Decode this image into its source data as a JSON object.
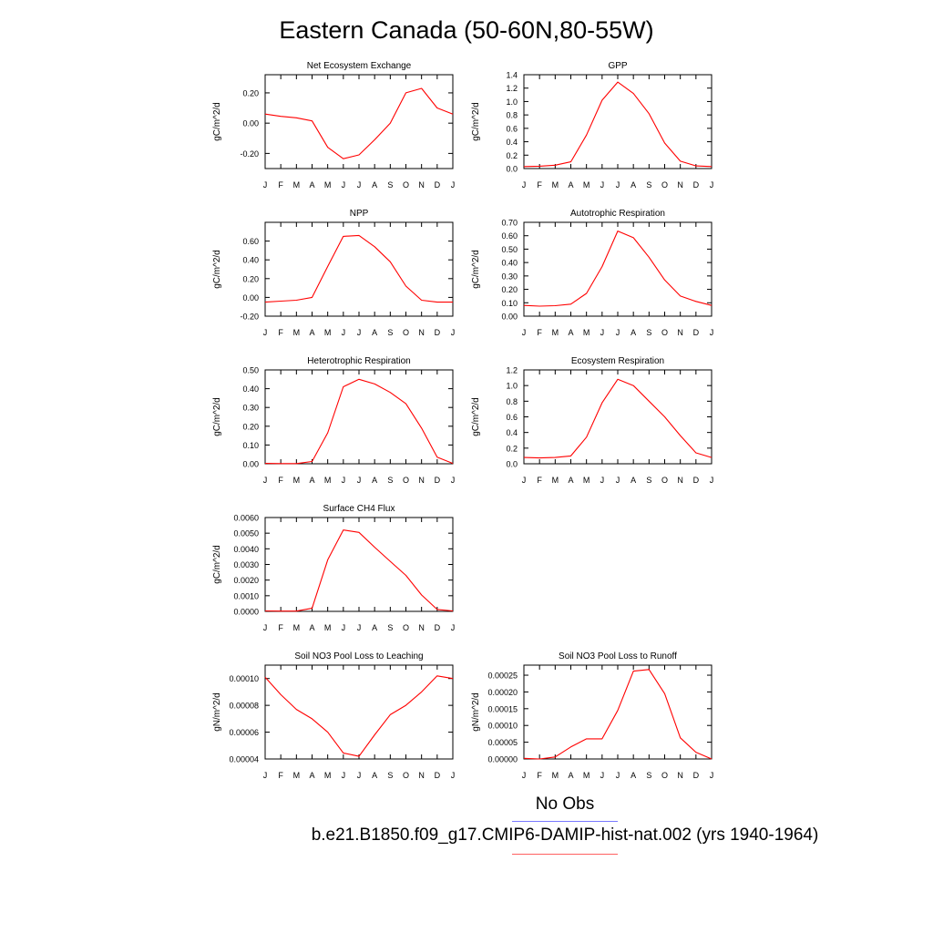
{
  "page": {
    "title": "Eastern Canada (50-60N,80-55W)",
    "legend": {
      "obs_label": "No Obs",
      "run_label": "b.e21.B1850.f09_g17.CMIP6-DAMIP-hist-nat.002 (yrs 1940-1964)",
      "obs_color": "#7a7aff",
      "run_color": "#ff0000"
    }
  },
  "chart_data": [
    {
      "type": "line",
      "title": "Net Ecosystem Exchange",
      "ylabel": "gC/m^2/d",
      "categories": [
        "J",
        "F",
        "M",
        "A",
        "M",
        "J",
        "J",
        "A",
        "S",
        "O",
        "N",
        "D",
        "J"
      ],
      "series": [
        {
          "values": [
            0.06,
            0.045,
            0.035,
            0.015,
            -0.16,
            -0.235,
            -0.21,
            -0.11,
            0.0,
            0.2,
            0.23,
            0.1,
            0.06
          ]
        }
      ],
      "ylim": [
        -0.3,
        0.32
      ],
      "yticks": [
        -0.2,
        0.0,
        0.2
      ],
      "ytick_labels": [
        "-0.20",
        "0.00",
        "0.20"
      ]
    },
    {
      "type": "line",
      "title": "GPP",
      "ylabel": "gC/m^2/d",
      "categories": [
        "J",
        "F",
        "M",
        "A",
        "M",
        "J",
        "J",
        "A",
        "S",
        "O",
        "N",
        "D",
        "J"
      ],
      "series": [
        {
          "values": [
            0.03,
            0.035,
            0.05,
            0.1,
            0.5,
            1.02,
            1.29,
            1.12,
            0.82,
            0.38,
            0.11,
            0.04,
            0.03
          ]
        }
      ],
      "ylim": [
        0,
        1.4
      ],
      "yticks": [
        0,
        0.2,
        0.4,
        0.6,
        0.8,
        1.0,
        1.2,
        1.4
      ],
      "ytick_labels": [
        "0.0",
        "0.2",
        "0.4",
        "0.6",
        "0.8",
        "1.0",
        "1.2",
        "1.4"
      ]
    },
    {
      "type": "line",
      "title": "NPP",
      "ylabel": "gC/m^2/d",
      "categories": [
        "J",
        "F",
        "M",
        "A",
        "M",
        "J",
        "J",
        "A",
        "S",
        "O",
        "N",
        "D",
        "J"
      ],
      "series": [
        {
          "values": [
            -0.05,
            -0.04,
            -0.03,
            0.0,
            0.33,
            0.65,
            0.66,
            0.54,
            0.38,
            0.12,
            -0.03,
            -0.05,
            -0.05
          ]
        }
      ],
      "ylim": [
        -0.2,
        0.8
      ],
      "yticks": [
        -0.2,
        0.0,
        0.2,
        0.4,
        0.6
      ],
      "ytick_labels": [
        "-0.20",
        "0.00",
        "0.20",
        "0.40",
        "0.60"
      ]
    },
    {
      "type": "line",
      "title": "Autotrophic Respiration",
      "ylabel": "gC/m^2/d",
      "categories": [
        "J",
        "F",
        "M",
        "A",
        "M",
        "J",
        "J",
        "A",
        "S",
        "O",
        "N",
        "D",
        "J"
      ],
      "series": [
        {
          "values": [
            0.08,
            0.075,
            0.078,
            0.09,
            0.17,
            0.37,
            0.635,
            0.585,
            0.44,
            0.27,
            0.15,
            0.11,
            0.08
          ]
        }
      ],
      "ylim": [
        0,
        0.7
      ],
      "yticks": [
        0,
        0.1,
        0.2,
        0.3,
        0.4,
        0.5,
        0.6,
        0.7
      ],
      "ytick_labels": [
        "0.00",
        "0.10",
        "0.20",
        "0.30",
        "0.40",
        "0.50",
        "0.60",
        "0.70"
      ]
    },
    {
      "type": "line",
      "title": "Heterotrophic Respiration",
      "ylabel": "gC/m^2/d",
      "categories": [
        "J",
        "F",
        "M",
        "A",
        "M",
        "J",
        "J",
        "A",
        "S",
        "O",
        "N",
        "D",
        "J"
      ],
      "series": [
        {
          "values": [
            0.002,
            0.001,
            0.001,
            0.012,
            0.165,
            0.41,
            0.45,
            0.425,
            0.38,
            0.32,
            0.19,
            0.035,
            0.002
          ]
        }
      ],
      "ylim": [
        0,
        0.5
      ],
      "yticks": [
        0,
        0.1,
        0.2,
        0.3,
        0.4,
        0.5
      ],
      "ytick_labels": [
        "0.00",
        "0.10",
        "0.20",
        "0.30",
        "0.40",
        "0.50"
      ]
    },
    {
      "type": "line",
      "title": "Ecosystem Respiration",
      "ylabel": "gC/m^2/d",
      "categories": [
        "J",
        "F",
        "M",
        "A",
        "M",
        "J",
        "J",
        "A",
        "S",
        "O",
        "N",
        "D",
        "J"
      ],
      "series": [
        {
          "values": [
            0.08,
            0.075,
            0.08,
            0.1,
            0.34,
            0.78,
            1.08,
            1.0,
            0.8,
            0.6,
            0.36,
            0.14,
            0.08
          ]
        }
      ],
      "ylim": [
        0,
        1.2
      ],
      "yticks": [
        0,
        0.2,
        0.4,
        0.6,
        0.8,
        1.0,
        1.2
      ],
      "ytick_labels": [
        "0.0",
        "0.2",
        "0.4",
        "0.6",
        "0.8",
        "1.0",
        "1.2"
      ]
    },
    {
      "type": "line",
      "title": "Surface CH4 Flux",
      "ylabel": "gC/m^2/d",
      "categories": [
        "J",
        "F",
        "M",
        "A",
        "M",
        "J",
        "J",
        "A",
        "S",
        "O",
        "N",
        "D",
        "J"
      ],
      "series": [
        {
          "values": [
            3e-05,
            2e-05,
            2e-05,
            0.0002,
            0.0033,
            0.0052,
            0.00505,
            0.0041,
            0.0032,
            0.0023,
            0.00105,
            0.00012,
            3e-05
          ]
        }
      ],
      "ylim": [
        0,
        0.006
      ],
      "yticks": [
        0,
        0.001,
        0.002,
        0.003,
        0.004,
        0.005,
        0.006
      ],
      "ytick_labels": [
        "0.0000",
        "0.0010",
        "0.0020",
        "0.0030",
        "0.0040",
        "0.0050",
        "0.0060"
      ]
    },
    {
      "type": "line",
      "title": "Soil NO3 Pool Loss to Leaching",
      "ylabel": "gN/m^2/d",
      "categories": [
        "J",
        "F",
        "M",
        "A",
        "M",
        "J",
        "J",
        "A",
        "S",
        "O",
        "N",
        "D",
        "J"
      ],
      "series": [
        {
          "values": [
            0.000101,
            8.8e-05,
            7.7e-05,
            7e-05,
            6e-05,
            4.45e-05,
            4.2e-05,
            5.8e-05,
            7.3e-05,
            8e-05,
            9e-05,
            0.000102,
            0.0001
          ]
        }
      ],
      "ylim": [
        4e-05,
        0.00011
      ],
      "yticks": [
        4e-05,
        6e-05,
        8e-05,
        0.0001
      ],
      "ytick_labels": [
        "0.00004",
        "0.00006",
        "0.00008",
        "0.00010"
      ]
    },
    {
      "type": "line",
      "title": "Soil NO3 Pool Loss to Runoff",
      "ylabel": "gN/m^2/d",
      "categories": [
        "J",
        "F",
        "M",
        "A",
        "M",
        "J",
        "J",
        "A",
        "S",
        "O",
        "N",
        "D",
        "J"
      ],
      "series": [
        {
          "values": [
            2e-06,
            0.0,
            6e-06,
            3.6e-05,
            6e-05,
            6e-05,
            0.000145,
            0.000262,
            0.000267,
            0.000195,
            6.3e-05,
            2e-05,
            0.0
          ]
        }
      ],
      "ylim": [
        0,
        0.00028
      ],
      "yticks": [
        0,
        5e-05,
        0.0001,
        0.00015,
        0.0002,
        0.00025
      ],
      "ytick_labels": [
        "0.00000",
        "0.00005",
        "0.00010",
        "0.00015",
        "0.00020",
        "0.00025"
      ]
    }
  ]
}
